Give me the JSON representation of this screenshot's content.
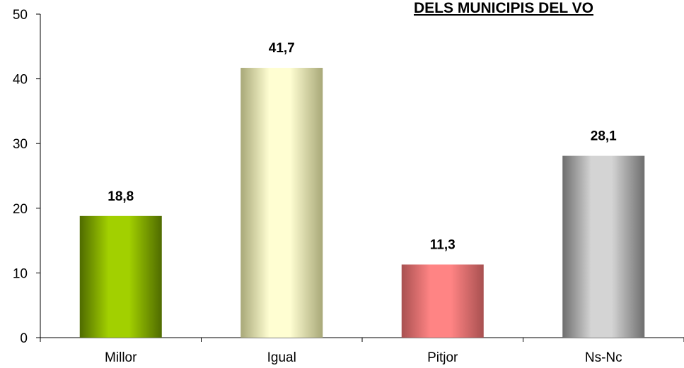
{
  "chart_data": {
    "type": "bar",
    "title": "DELS MUNICIPIS DEL VO",
    "categories": [
      "Millor",
      "Igual",
      "Pitjor",
      "Ns-Nc"
    ],
    "values": [
      18.8,
      41.7,
      11.3,
      28.1
    ],
    "value_labels": [
      "18,8",
      "41,7",
      "11,3",
      "28,1"
    ],
    "ylim": [
      0,
      50
    ],
    "yticks": [
      0,
      10,
      20,
      30,
      40,
      50
    ],
    "xlabel": "",
    "ylabel": "",
    "grid": false,
    "legend": "none",
    "colors": [
      {
        "dark": "#4f6b00",
        "light": "#a2d000"
      },
      {
        "dark": "#a8a878",
        "light": "#fffed2"
      },
      {
        "dark": "#a85050",
        "light": "#ff8484"
      },
      {
        "dark": "#6e6e6e",
        "light": "#d4d4d4"
      }
    ]
  }
}
